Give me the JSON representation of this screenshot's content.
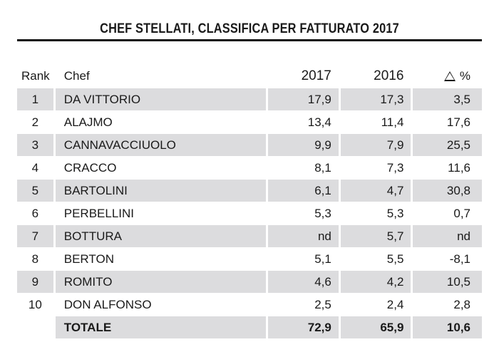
{
  "title": "CHEF STELLATI, CLASSIFICA PER FATTURATO 2017",
  "header": {
    "rank": "Rank",
    "chef": "Chef",
    "y2017": "2017",
    "y2016": "2016",
    "pct": "%",
    "pct_icon": "triangle-outline-icon"
  },
  "rows": [
    {
      "rank": "1",
      "chef": "DA VITTORIO",
      "y2017": "17,9",
      "y2016": "17,3",
      "pct": "3,5"
    },
    {
      "rank": "2",
      "chef": "ALAJMO",
      "y2017": "13,4",
      "y2016": "11,4",
      "pct": "17,6"
    },
    {
      "rank": "3",
      "chef": "CANNAVACCIUOLO",
      "y2017": "9,9",
      "y2016": "7,9",
      "pct": "25,5"
    },
    {
      "rank": "4",
      "chef": "CRACCO",
      "y2017": "8,1",
      "y2016": "7,3",
      "pct": "11,6"
    },
    {
      "rank": "5",
      "chef": "BARTOLINI",
      "y2017": "6,1",
      "y2016": "4,7",
      "pct": "30,8"
    },
    {
      "rank": "6",
      "chef": "PERBELLINI",
      "y2017": "5,3",
      "y2016": "5,3",
      "pct": "0,7"
    },
    {
      "rank": "7",
      "chef": "BOTTURA",
      "y2017": "nd",
      "y2016": "5,7",
      "pct": "nd"
    },
    {
      "rank": "8",
      "chef": "BERTON",
      "y2017": "5,1",
      "y2016": "5,5",
      "pct": "-8,1"
    },
    {
      "rank": "9",
      "chef": "ROMITO",
      "y2017": "4,6",
      "y2016": "4,2",
      "pct": "10,5"
    },
    {
      "rank": "10",
      "chef": "DON ALFONSO",
      "y2017": "2,5",
      "y2016": "2,4",
      "pct": "2,8"
    }
  ],
  "total": {
    "label": "TOTALE",
    "y2017": "72,9",
    "y2016": "65,9",
    "pct": "10,6"
  },
  "colors": {
    "row_shade": "#dcdcde",
    "rule": "#111111",
    "text": "#1a1a1a"
  }
}
